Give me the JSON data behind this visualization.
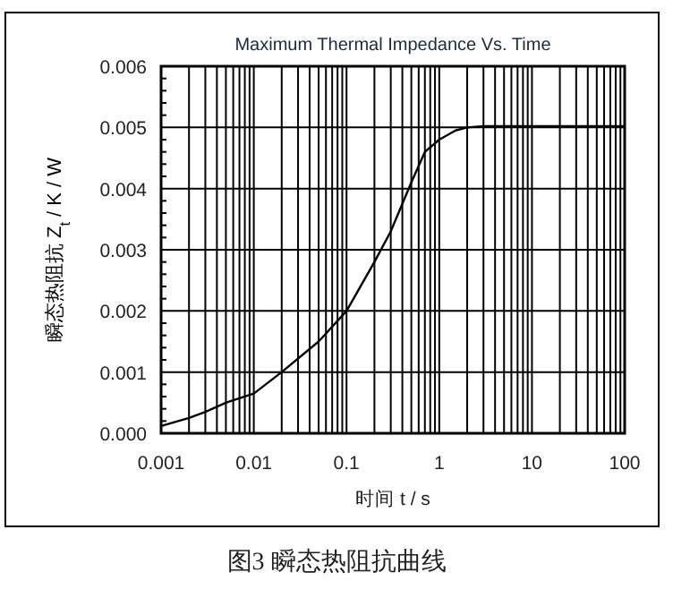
{
  "chart_data": {
    "type": "line",
    "title": "Maximum Thermal Impedance Vs. Time",
    "xlabel": "时间  t / s",
    "ylabel": "瞬态热阻抗 Z$_{t}$ / K / W",
    "annotations": [
      "图3  瞬态热阻抗曲线"
    ],
    "log": "x",
    "grid": true,
    "marker": "none",
    "line_style": "solid",
    "xlim": [
      0.001,
      100
    ],
    "xticks": [
      0.001,
      0.01,
      0.1,
      1,
      10,
      100
    ],
    "ylim": [
      0,
      0.006
    ],
    "yticks": [
      {
        "value": 0,
        "label": "0.000"
      },
      {
        "value": 0.001,
        "label": "0.001"
      },
      {
        "value": 0.002,
        "label": "0.002"
      },
      {
        "value": 0.003,
        "label": "0.003"
      },
      {
        "value": 0.004,
        "label": "0.004"
      },
      {
        "value": 0.005,
        "label": "0.005"
      },
      {
        "value": 0.006,
        "label": "0.006"
      }
    ],
    "x": [
      0.001,
      0.002,
      0.003,
      0.005,
      0.01,
      0.02,
      0.05,
      0.1,
      0.2,
      0.3,
      0.5,
      0.7,
      1,
      1.5,
      2,
      3,
      10,
      100
    ],
    "series": [
      {
        "color": "#000000",
        "values": [
          0.00012,
          0.00025,
          0.00035,
          0.0005,
          0.00065,
          0.001,
          0.0015,
          0.002,
          0.0028,
          0.0033,
          0.0041,
          0.0046,
          0.0048,
          0.00495,
          0.005,
          0.00502,
          0.00502,
          0.00502
        ]
      }
    ]
  }
}
